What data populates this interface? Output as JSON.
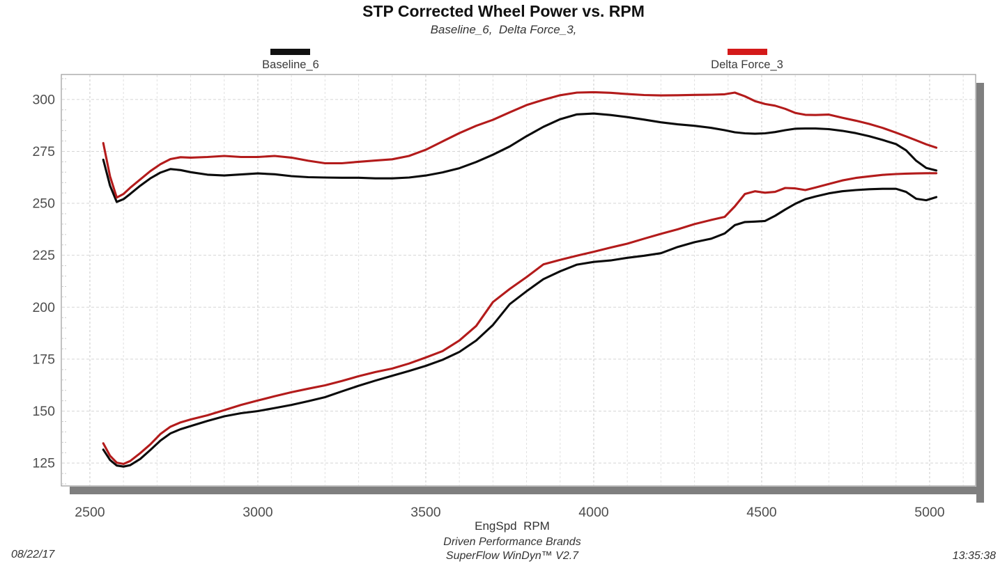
{
  "header": {
    "title": "STP Corrected Wheel Power vs. RPM",
    "subtitle": "Baseline_6,  Delta Force_3,"
  },
  "legend": [
    {
      "label": "Baseline_6",
      "color": "#111111"
    },
    {
      "label": "Delta Force_3",
      "color": "#d41a1a"
    }
  ],
  "footer": {
    "xlabel": "EngSpd  RPM",
    "brand": "Driven Performance Brands",
    "software": "SuperFlow WinDyn™ V2.7",
    "date": "08/22/17",
    "time": "13:35:38"
  },
  "chart_data": {
    "type": "line",
    "title": "STP Corrected Wheel Power vs. RPM",
    "subtitle": "Baseline_6, Delta Force_3,",
    "xlabel": "EngSpd RPM",
    "ylabel": "",
    "legend_position": "top",
    "grid": "dashed",
    "axes": {
      "x_min": 2415,
      "x_max": 5137,
      "y_min": 114,
      "y_max": 312,
      "x_ticks": [
        2500,
        3000,
        3500,
        4000,
        4500,
        5000
      ],
      "x_minor_step": 100,
      "y_ticks": [
        300,
        275,
        250,
        225,
        200,
        175,
        150,
        125
      ],
      "y_minor_step": 5
    },
    "rpm": [
      2540,
      2560,
      2580,
      2600,
      2620,
      2650,
      2680,
      2710,
      2740,
      2770,
      2800,
      2850,
      2900,
      2950,
      3000,
      3050,
      3100,
      3150,
      3200,
      3250,
      3300,
      3350,
      3400,
      3450,
      3500,
      3550,
      3600,
      3650,
      3700,
      3750,
      3800,
      3850,
      3900,
      3950,
      4000,
      4050,
      4100,
      4150,
      4200,
      4250,
      4300,
      4350,
      4390,
      4420,
      4450,
      4480,
      4510,
      4540,
      4570,
      4600,
      4630,
      4660,
      4700,
      4740,
      4780,
      4820,
      4860,
      4900,
      4930,
      4960,
      4990,
      5020
    ],
    "series": [
      {
        "name": "Baseline_6",
        "color": "#0b0b0b",
        "upper": [
          271,
          258.5,
          250.7,
          252,
          254.5,
          258.5,
          262,
          264.8,
          266.5,
          266,
          265,
          263.8,
          263.4,
          263.9,
          264.4,
          264,
          263.1,
          262.6,
          262.4,
          262.3,
          262.3,
          262,
          262,
          262.4,
          263.4,
          264.9,
          266.9,
          269.9,
          273.4,
          277.4,
          282.3,
          286.8,
          290.5,
          292.8,
          293.2,
          292.5,
          291.5,
          290.3,
          289,
          288,
          287.3,
          286.3,
          285.2,
          284.2,
          283.7,
          283.5,
          283.7,
          284.3,
          285.2,
          285.9,
          286,
          286,
          285.7,
          284.9,
          283.8,
          282.3,
          280.5,
          278.5,
          275.5,
          270.5,
          267,
          265.8
        ],
        "lower": [
          131.5,
          126.5,
          123.8,
          123.3,
          124,
          127,
          131.3,
          135.8,
          139.3,
          141.3,
          142.8,
          145.3,
          147.5,
          149,
          150,
          151.5,
          153,
          154.8,
          156.7,
          159.5,
          162.2,
          164.7,
          167,
          169.3,
          171.8,
          174.7,
          178.5,
          184,
          191.5,
          201.5,
          207.7,
          213.5,
          217.3,
          220.5,
          221.8,
          222.5,
          223.8,
          224.8,
          226,
          229,
          231.3,
          233,
          235.5,
          239.5,
          241,
          241.2,
          241.5,
          244,
          247,
          249.8,
          252,
          253.3,
          254.8,
          255.8,
          256.4,
          256.8,
          257,
          257,
          255.5,
          252.2,
          251.5,
          253
        ]
      },
      {
        "name": "Delta Force_3",
        "color": "#b31b1b",
        "upper": [
          279,
          263,
          252.8,
          254.5,
          257.5,
          261.5,
          265.5,
          268.8,
          271.3,
          272.2,
          272,
          272.3,
          272.8,
          272.3,
          272.3,
          272.8,
          272,
          270.5,
          269.3,
          269.3,
          270,
          270.6,
          271.2,
          272.8,
          275.8,
          279.8,
          283.8,
          287.3,
          290.2,
          293.8,
          297.3,
          299.8,
          302,
          303.3,
          303.5,
          303.2,
          302.6,
          302.1,
          301.9,
          302,
          302.2,
          302.3,
          302.5,
          303.3,
          301.5,
          299.2,
          297.8,
          297,
          295.5,
          293.5,
          292.6,
          292.5,
          292.7,
          291.2,
          289.8,
          288.2,
          286.3,
          284,
          282.2,
          280.3,
          278.4,
          276.8
        ],
        "lower": [
          134.5,
          128.5,
          125.2,
          124.6,
          126,
          129.8,
          134,
          139,
          142.5,
          144.6,
          146,
          148,
          150.5,
          153,
          155.1,
          157.2,
          159.1,
          160.8,
          162.4,
          164.5,
          166.8,
          168.8,
          170.5,
          172.9,
          175.8,
          178.9,
          184,
          191,
          202.5,
          208.8,
          214.5,
          220.6,
          222.8,
          224.8,
          226.7,
          228.7,
          230.6,
          233,
          235.3,
          237.5,
          240,
          242,
          243.5,
          248.5,
          254.5,
          255.8,
          255.1,
          255.5,
          257.4,
          257.2,
          256.4,
          257.6,
          259.3,
          261,
          262.2,
          263,
          263.7,
          264.1,
          264.3,
          264.4,
          264.5,
          264.5
        ]
      }
    ]
  }
}
